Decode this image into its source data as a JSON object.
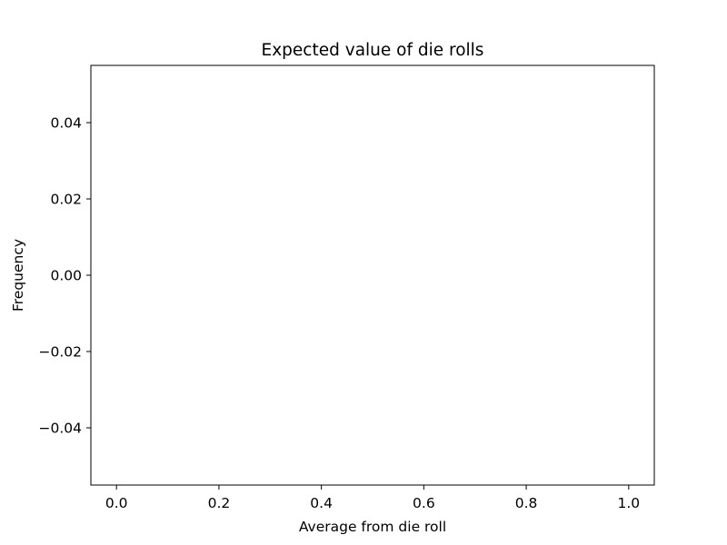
{
  "chart_data": {
    "type": "bar",
    "title": "Expected value of die rolls",
    "xlabel": "Average from die roll",
    "ylabel": "Frequency",
    "xlim": [
      -0.05,
      1.05
    ],
    "ylim": [
      -0.055,
      0.055
    ],
    "xticks": [
      0.0,
      0.2,
      0.4,
      0.6,
      0.8,
      1.0
    ],
    "xtick_labels": [
      "0.0",
      "0.2",
      "0.4",
      "0.6",
      "0.8",
      "1.0"
    ],
    "yticks": [
      -0.04,
      -0.02,
      0.0,
      0.02,
      0.04
    ],
    "ytick_labels": [
      "−0.04",
      "−0.02",
      "0.00",
      "0.02",
      "0.04"
    ],
    "categories": [],
    "values": [],
    "grid": false,
    "legend": "none",
    "colors": {
      "axes": "#000000",
      "background": "#ffffff",
      "text": "#000000"
    }
  }
}
